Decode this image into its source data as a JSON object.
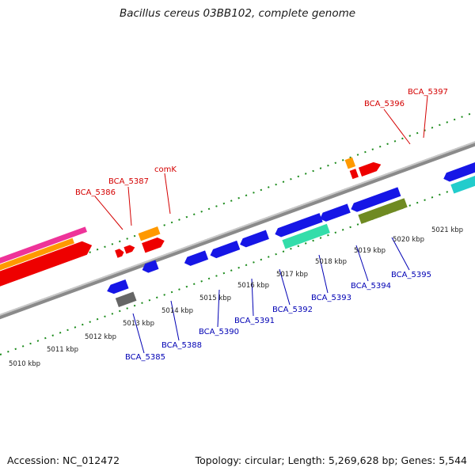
{
  "header": {
    "title": "Bacillus cereus 03BB102, complete genome"
  },
  "footer": {
    "accession": "Accession: NC_012472",
    "topology": "Topology: circular; Length: 5,269,628 bp; Genes: 5,544"
  },
  "map": {
    "scale_labels": [
      "5010 kbp",
      "5011 kbp",
      "5012 kbp",
      "5013 kbp",
      "5014 kbp",
      "5015 kbp",
      "5016 kbp",
      "5017 kbp",
      "5018 kbp",
      "5019 kbp",
      "5020 kbp",
      "5021 kbp"
    ],
    "top_gene_labels": [
      "BCA_5386",
      "BCA_5387",
      "comK",
      "BCA_5396",
      "BCA_5397"
    ],
    "bottom_gene_labels": [
      "BCA_5385",
      "BCA_5388",
      "BCA_5390",
      "BCA_5391",
      "BCA_5392",
      "BCA_5393",
      "BCA_5394",
      "BCA_5395"
    ]
  },
  "colors": {
    "backbone": "#8a8a8a",
    "tick": "#1a8a1a",
    "forward_cds": "#ee0000",
    "reverse_cds": "#1616e6",
    "orange": "#ff9900",
    "magenta": "#ee3399",
    "teal": "#33ddaa",
    "olive": "#6f8a22",
    "cyan": "#22cccc",
    "gray_block": "#666666",
    "label_top": "#d40000",
    "label_bottom": "#0000b4"
  }
}
